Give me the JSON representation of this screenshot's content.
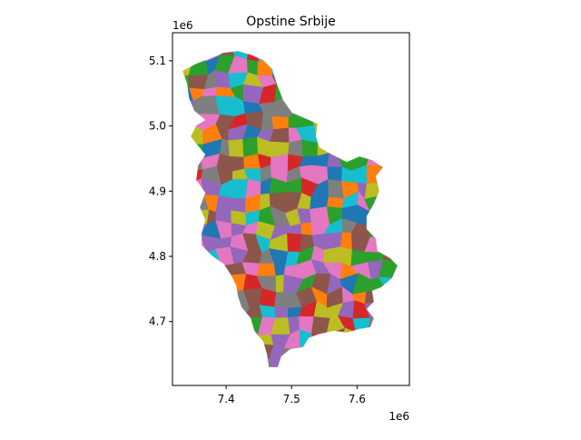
{
  "title": "Opstine Srbije",
  "x_axis": {
    "offset_label": "1e6",
    "ticks": [
      {
        "value": 7.4,
        "label": "7.4"
      },
      {
        "value": 7.5,
        "label": "7.5"
      },
      {
        "value": 7.6,
        "label": "7.6"
      }
    ],
    "lim": [
      7.318,
      7.68
    ]
  },
  "y_axis": {
    "offset_label": "1e6",
    "ticks": [
      {
        "value": 5.1,
        "label": "5.1"
      },
      {
        "value": 5.0,
        "label": "5.0"
      },
      {
        "value": 4.9,
        "label": "4.9"
      },
      {
        "value": 4.8,
        "label": "4.8"
      },
      {
        "value": 4.7,
        "label": "4.7"
      }
    ],
    "lim": [
      4.602,
      5.143
    ]
  },
  "palette": [
    "#1f77b4",
    "#ff7f0e",
    "#2ca02c",
    "#d62728",
    "#9467bd",
    "#8c564b",
    "#e377c2",
    "#7f7f7f",
    "#bcbd22",
    "#17becf"
  ]
}
